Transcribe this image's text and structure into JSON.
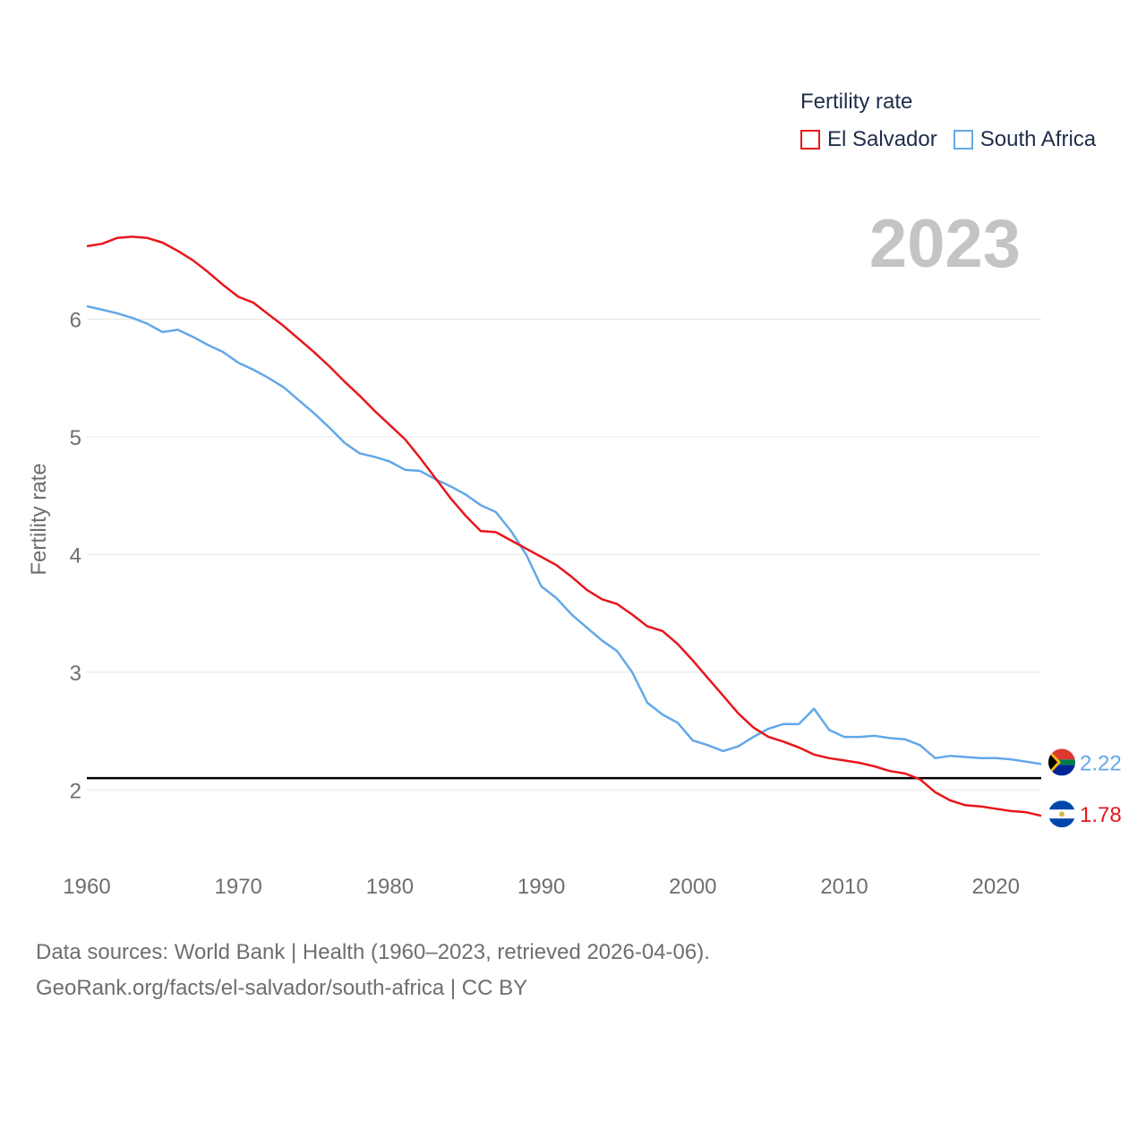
{
  "legend": {
    "title": "Fertility rate",
    "items": [
      {
        "name": "El Salvador",
        "color": "#e8161b"
      },
      {
        "name": "South Africa",
        "color": "#63a8e8"
      }
    ]
  },
  "source": {
    "line1": "Data sources: World Bank | Health (1960–2023, retrieved 2026-04-06).",
    "line2": "GeoRank.org/facts/el-salvador/south-africa | CC BY"
  },
  "chart_data": {
    "type": "line",
    "year_label": "2023",
    "ylabel": "Fertility rate",
    "xlabel": "",
    "xlim": [
      1960,
      2023
    ],
    "ylim": [
      1.5,
      7.0
    ],
    "x_ticks": [
      1960,
      1970,
      1980,
      1990,
      2000,
      2010,
      2020
    ],
    "y_ticks": [
      2,
      3,
      4,
      5,
      6
    ],
    "reference_line": {
      "y": 2.1,
      "color": "#000000"
    },
    "x": [
      1960,
      1961,
      1962,
      1963,
      1964,
      1965,
      1966,
      1967,
      1968,
      1969,
      1970,
      1971,
      1972,
      1973,
      1974,
      1975,
      1976,
      1977,
      1978,
      1979,
      1980,
      1981,
      1982,
      1983,
      1984,
      1985,
      1986,
      1987,
      1988,
      1989,
      1990,
      1991,
      1992,
      1993,
      1994,
      1995,
      1996,
      1997,
      1998,
      1999,
      2000,
      2001,
      2002,
      2003,
      2004,
      2005,
      2006,
      2007,
      2008,
      2009,
      2010,
      2011,
      2012,
      2013,
      2014,
      2015,
      2016,
      2017,
      2018,
      2019,
      2020,
      2021,
      2022,
      2023
    ],
    "series": [
      {
        "name": "El Salvador",
        "color": "#e8161b",
        "end_label": "1.78",
        "values": [
          6.62,
          6.64,
          6.69,
          6.7,
          6.69,
          6.65,
          6.58,
          6.5,
          6.4,
          6.29,
          6.19,
          6.14,
          6.04,
          5.94,
          5.83,
          5.72,
          5.6,
          5.47,
          5.35,
          5.22,
          5.1,
          4.98,
          4.82,
          4.65,
          4.48,
          4.33,
          4.2,
          4.19,
          4.12,
          4.05,
          3.98,
          3.91,
          3.81,
          3.7,
          3.62,
          3.58,
          3.49,
          3.39,
          3.35,
          3.24,
          3.1,
          2.95,
          2.8,
          2.65,
          2.53,
          2.45,
          2.41,
          2.36,
          2.3,
          2.27,
          2.25,
          2.23,
          2.2,
          2.16,
          2.14,
          2.09,
          1.98,
          1.91,
          1.87,
          1.86,
          1.84,
          1.82,
          1.81,
          1.78
        ]
      },
      {
        "name": "South Africa",
        "color": "#63a8e8",
        "end_label": "2.22",
        "values": [
          6.11,
          6.08,
          6.05,
          6.01,
          5.96,
          5.89,
          5.91,
          5.85,
          5.78,
          5.72,
          5.63,
          5.57,
          5.5,
          5.42,
          5.31,
          5.2,
          5.08,
          4.95,
          4.86,
          4.83,
          4.79,
          4.72,
          4.71,
          4.64,
          4.58,
          4.51,
          4.42,
          4.36,
          4.2,
          4.0,
          3.73,
          3.63,
          3.49,
          3.38,
          3.27,
          3.18,
          3.0,
          2.74,
          2.64,
          2.57,
          2.42,
          2.38,
          2.33,
          2.37,
          2.45,
          2.52,
          2.56,
          2.56,
          2.69,
          2.51,
          2.45,
          2.45,
          2.46,
          2.44,
          2.43,
          2.38,
          2.27,
          2.29,
          2.28,
          2.27,
          2.27,
          2.26,
          2.24,
          2.22
        ]
      }
    ]
  }
}
